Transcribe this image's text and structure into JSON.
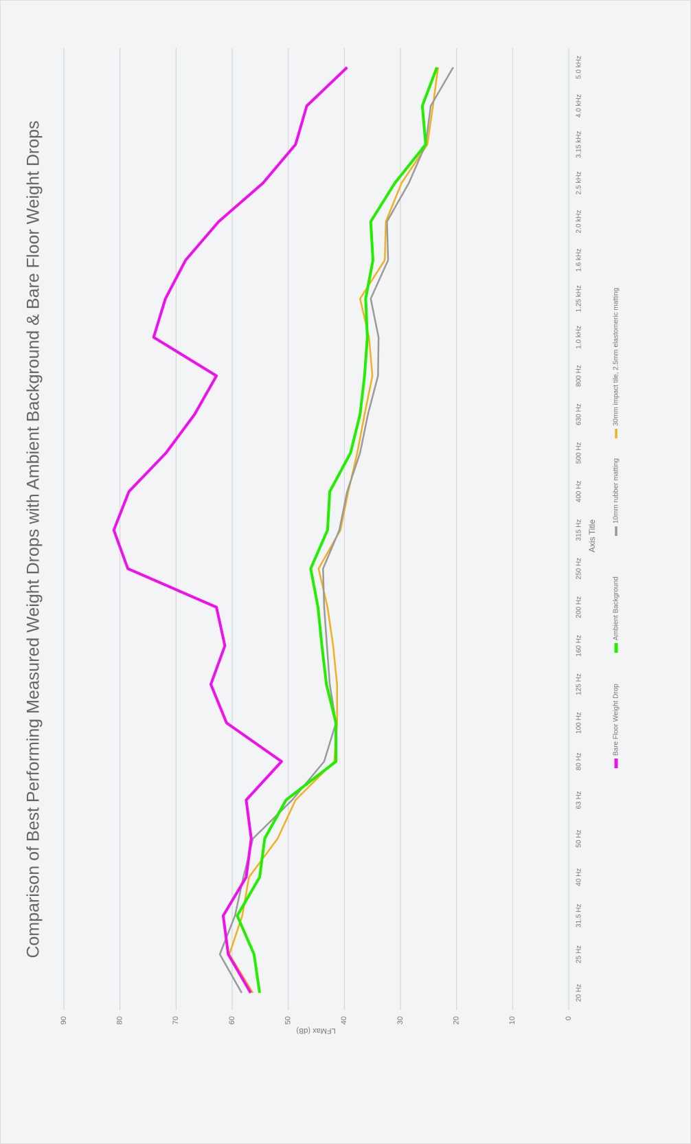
{
  "chart_data": {
    "type": "line",
    "title": "Comparison of  Best Performing Measured Weight Drops with Ambient Background & Bare Floor Weight Drops",
    "x_label": "Axis Title",
    "y_label": "LFMax (dB)",
    "categories": [
      "20 Hz",
      "25 Hz",
      "31.5 Hz",
      "40 Hz",
      "50 Hz",
      "63 Hz",
      "80 Hz",
      "100 Hz",
      "125 Hz",
      "160 Hz",
      "200 Hz",
      "250 Hz",
      "315 Hz",
      "400 Hz",
      "500 Hz",
      "630 Hz",
      "800 Hz",
      "1.0 kHz",
      "1.25 kHz",
      "1.6 kHz",
      "2.0 kHz",
      "2.5 kHz",
      "3.15 kHz",
      "4.0 kHz",
      "5.0 kHz"
    ],
    "series": [
      {
        "name": "Bare Floor Weight Drop",
        "color": "#ee11ee",
        "values": [
          56.7,
          60.7,
          61.6,
          57.5,
          56.6,
          57.5,
          51.2,
          61.0,
          63.8,
          61.3,
          62.8,
          78.6,
          81.1,
          78.4,
          71.8,
          66.7,
          62.8,
          74.0,
          71.9,
          68.3,
          62.4,
          54.5,
          48.7,
          46.7,
          39.5
        ]
      },
      {
        "name": "Ambient Background",
        "color": "#22ee00",
        "values": [
          55.1,
          56.1,
          59.1,
          55.1,
          54.2,
          50.4,
          41.5,
          41.5,
          43.2,
          44.0,
          44.7,
          46.0,
          43.0,
          42.6,
          38.9,
          37.2,
          36.4,
          35.9,
          36.2,
          34.9,
          35.3,
          31.0,
          25.5,
          26.1,
          23.5
        ]
      },
      {
        "name": "10mm rubber matting",
        "color": "#9a9a9a",
        "values": [
          58.3,
          62.2,
          59.5,
          58.0,
          56.3,
          49.3,
          43.6,
          41.5,
          42.6,
          43.1,
          43.6,
          43.8,
          40.9,
          39.5,
          37.2,
          35.8,
          34.0,
          33.9,
          35.3,
          32.2,
          32.4,
          28.5,
          25.5,
          24.6,
          20.6
        ]
      },
      {
        "name": "30mm impact tile, 2.5mm elastomeric matting",
        "color": "#f0b020",
        "values": [
          56.3,
          60.5,
          58.2,
          57.0,
          51.9,
          48.7,
          41.8,
          41.3,
          41.3,
          42.0,
          43.0,
          44.6,
          40.7,
          39.3,
          37.7,
          36.4,
          35.0,
          35.6,
          37.2,
          32.8,
          32.6,
          29.8,
          25.2,
          24.2,
          23.3
        ]
      }
    ],
    "ylim": [
      0,
      90
    ],
    "yticks": [
      0,
      10,
      20,
      30,
      40,
      50,
      60,
      70,
      80,
      90
    ],
    "grid": true,
    "legend": "bottom"
  }
}
